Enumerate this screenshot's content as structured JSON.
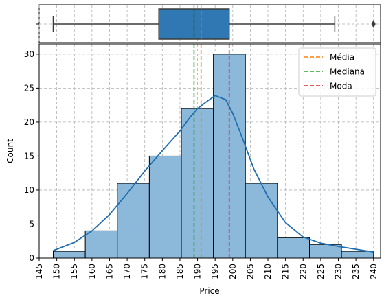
{
  "chart_data": [
    {
      "type": "boxplot",
      "title": "",
      "stats": {
        "whisker_low": 149,
        "q1": 179,
        "median": 189,
        "mean": 191,
        "q3": 199,
        "whisker_high": 229,
        "outliers": [
          240
        ]
      },
      "box_color": "#2f78b4",
      "yticks": [
        ""
      ]
    },
    {
      "type": "bar",
      "title": "",
      "xlabel": "Price",
      "ylabel": "Count",
      "xlim": [
        145,
        242
      ],
      "ylim": [
        0,
        31.5
      ],
      "bins": [
        {
          "x0": 149.0,
          "x1": 158.1,
          "count": 1
        },
        {
          "x0": 158.1,
          "x1": 167.2,
          "count": 4
        },
        {
          "x0": 167.2,
          "x1": 176.3,
          "count": 11
        },
        {
          "x0": 176.3,
          "x1": 185.4,
          "count": 15
        },
        {
          "x0": 185.4,
          "x1": 194.5,
          "count": 22
        },
        {
          "x0": 194.5,
          "x1": 203.6,
          "count": 30
        },
        {
          "x0": 203.6,
          "x1": 212.7,
          "count": 11
        },
        {
          "x0": 212.7,
          "x1": 221.8,
          "count": 3
        },
        {
          "x0": 221.8,
          "x1": 230.9,
          "count": 2
        },
        {
          "x0": 230.9,
          "x1": 240.0,
          "count": 1
        }
      ],
      "kde": {
        "x": [
          149,
          155,
          160,
          165,
          170,
          175,
          180,
          185,
          188,
          190,
          192,
          195,
          198,
          200,
          203,
          206,
          210,
          215,
          220,
          225,
          230,
          235,
          240
        ],
        "y": [
          1.1,
          2.3,
          4.0,
          6.4,
          9.5,
          12.8,
          15.8,
          18.7,
          20.8,
          22.0,
          22.8,
          23.9,
          23.3,
          21.3,
          17.3,
          13.1,
          9.0,
          5.2,
          3.1,
          2.2,
          1.7,
          1.3,
          0.9
        ]
      },
      "xticks": [
        145,
        150,
        155,
        160,
        165,
        170,
        175,
        180,
        185,
        190,
        195,
        200,
        205,
        210,
        215,
        220,
        225,
        230,
        235,
        240
      ],
      "yticks": [
        0,
        5,
        10,
        15,
        20,
        25,
        30
      ],
      "grid": true,
      "bar_color": "#8cb8da",
      "kde_color": "#1f6fb0",
      "lines": [
        {
          "name": "Média",
          "x": 191,
          "color": "#ff7f0e"
        },
        {
          "name": "Mediana",
          "x": 189,
          "color": "#2ca02c"
        },
        {
          "name": "Moda",
          "x": 199,
          "color": "#d62728"
        }
      ],
      "legend_position": "top-right"
    }
  ]
}
